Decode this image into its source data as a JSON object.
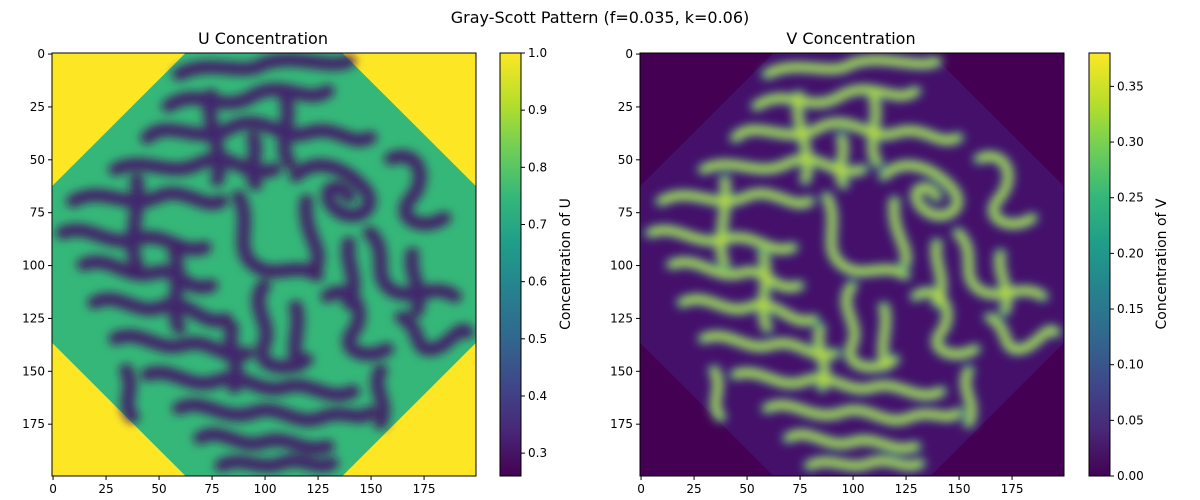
{
  "figure": {
    "suptitle": "Gray-Scott Pattern (f=0.035, k=0.06)"
  },
  "chart_data": [
    {
      "type": "heatmap",
      "title": "U Concentration",
      "xlim": [
        0,
        199
      ],
      "ylim": [
        199,
        0
      ],
      "xticks": [
        0,
        25,
        50,
        75,
        100,
        125,
        150,
        175
      ],
      "yticks": [
        0,
        25,
        50,
        75,
        100,
        125,
        150,
        175
      ],
      "colormap": "viridis",
      "background_value": 1.0,
      "pattern_value": 0.26,
      "colorbar": {
        "label": "Concentration of U",
        "min": 0.26,
        "max": 1.0,
        "ticks": [
          0.3,
          0.4,
          0.5,
          0.6,
          0.7,
          0.8,
          0.9,
          1.0
        ]
      }
    },
    {
      "type": "heatmap",
      "title": "V Concentration",
      "xlim": [
        0,
        199
      ],
      "ylim": [
        199,
        0
      ],
      "xticks": [
        0,
        25,
        50,
        75,
        100,
        125,
        150,
        175
      ],
      "yticks": [
        0,
        25,
        50,
        75,
        100,
        125,
        150,
        175
      ],
      "colormap": "viridis",
      "background_value": 0.0,
      "pattern_value": 0.38,
      "colorbar": {
        "label": "Concentration of V",
        "min": 0.0,
        "max": 0.38,
        "ticks": [
          0.0,
          0.05,
          0.1,
          0.15,
          0.2,
          0.25,
          0.3,
          0.35
        ]
      }
    }
  ],
  "colors": {
    "viridis": [
      "#440154",
      "#482878",
      "#3e4989",
      "#31688e",
      "#26828e",
      "#1f9e89",
      "#35b779",
      "#6ece58",
      "#b5de2b",
      "#fde725"
    ]
  }
}
